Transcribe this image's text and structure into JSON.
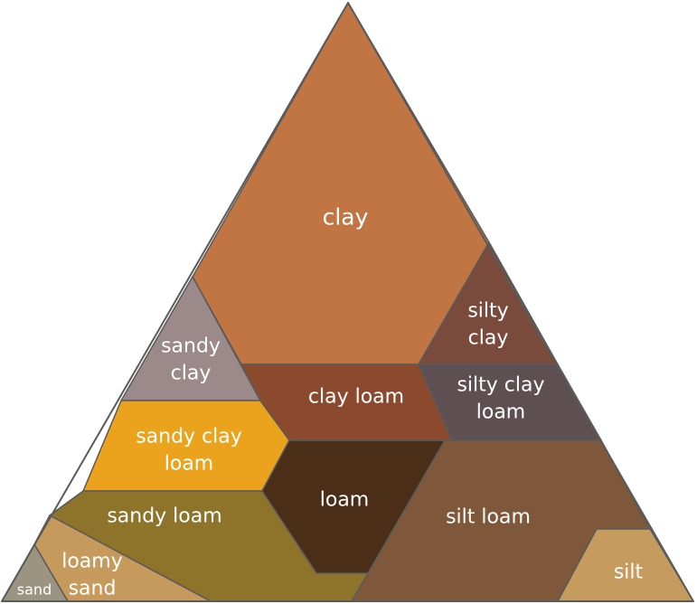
{
  "regions": [
    {
      "id": "clay",
      "lines": [
        "clay"
      ],
      "color": "#C07543"
    },
    {
      "id": "silty-clay",
      "lines": [
        "silty",
        "clay"
      ],
      "color": "#7A4B3D"
    },
    {
      "id": "sandy-clay",
      "lines": [
        "sandy",
        "clay"
      ],
      "color": "#9C8A8A"
    },
    {
      "id": "clay-loam",
      "lines": [
        "clay loam"
      ],
      "color": "#8B4A2E"
    },
    {
      "id": "silty-clay-loam",
      "lines": [
        "silty clay",
        "loam"
      ],
      "color": "#5E5052"
    },
    {
      "id": "sandy-clay-loam",
      "lines": [
        "sandy clay",
        "loam"
      ],
      "color": "#EBA21C"
    },
    {
      "id": "loam",
      "lines": [
        "loam"
      ],
      "color": "#4A2E17"
    },
    {
      "id": "silt-loam",
      "lines": [
        "silt loam"
      ],
      "color": "#7F583B"
    },
    {
      "id": "sandy-loam",
      "lines": [
        "sandy loam"
      ],
      "color": "#8E732B"
    },
    {
      "id": "loamy-sand",
      "lines": [
        "loamy",
        "sand"
      ],
      "color": "#C69A5C"
    },
    {
      "id": "sand",
      "lines": [
        "sand"
      ],
      "color": "#9A9480"
    },
    {
      "id": "silt",
      "lines": [
        "silt"
      ],
      "color": "#C59C5E"
    }
  ]
}
